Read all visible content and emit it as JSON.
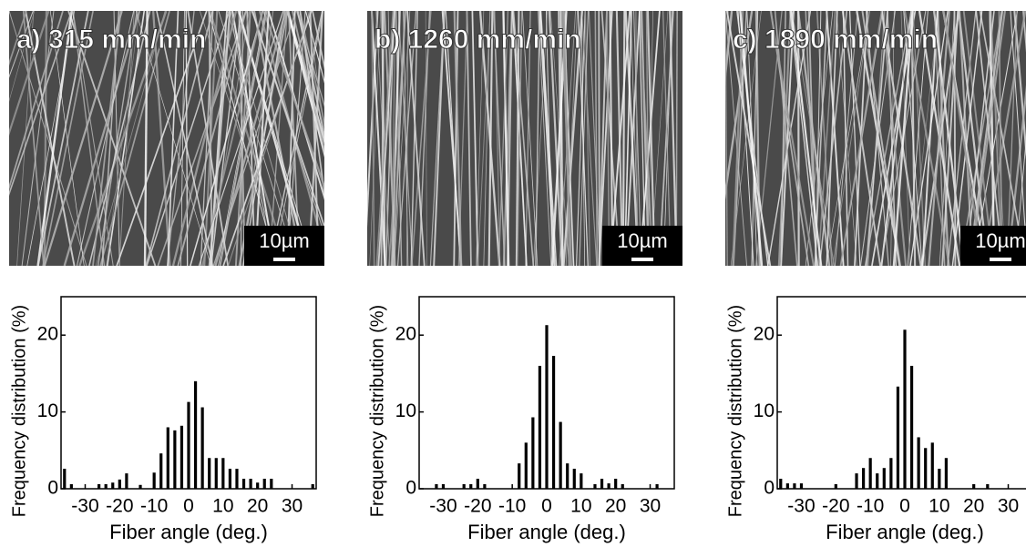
{
  "chart_data": [
    {
      "type": "bar",
      "image_label": "a) 315 mm/min",
      "scale_bar": "10µm",
      "y_label": "Frequency distribution (%)",
      "x_label": "Fiber angle (deg.)",
      "xlim": [
        -37,
        37
      ],
      "ylim": [
        0,
        25
      ],
      "xticks": [
        -30,
        -20,
        -10,
        0,
        10,
        20,
        30
      ],
      "yticks": [
        0,
        10,
        20
      ],
      "color": "#000000",
      "x": [
        -36,
        -34,
        -32,
        -30,
        -28,
        -26,
        -24,
        -22,
        -20,
        -18,
        -16,
        -14,
        -12,
        -10,
        -8,
        -6,
        -4,
        -2,
        0,
        2,
        4,
        6,
        8,
        10,
        12,
        14,
        16,
        18,
        20,
        22,
        24,
        26,
        28,
        30,
        32,
        34,
        36
      ],
      "values": [
        2.6,
        0.6,
        0,
        0,
        0,
        0.6,
        0.6,
        0.8,
        1.2,
        2.0,
        0,
        0.5,
        0,
        2.1,
        4.6,
        8.0,
        7.6,
        8.2,
        11.3,
        14.0,
        10.6,
        4.0,
        4.0,
        4.0,
        2.6,
        2.6,
        1.3,
        1.3,
        0.8,
        1.3,
        1.3,
        0,
        0,
        0,
        0,
        0,
        0.6
      ]
    },
    {
      "type": "bar",
      "image_label": "b) 1260 mm/min",
      "scale_bar": "10µm",
      "y_label": "Frequency distribution (%)",
      "x_label": "Fiber angle (deg.)",
      "xlim": [
        -37,
        37
      ],
      "ylim": [
        0,
        25
      ],
      "xticks": [
        -30,
        -20,
        -10,
        0,
        10,
        20,
        30
      ],
      "yticks": [
        0,
        10,
        20
      ],
      "color": "#000000",
      "x": [
        -36,
        -34,
        -32,
        -30,
        -28,
        -26,
        -24,
        -22,
        -20,
        -18,
        -16,
        -14,
        -12,
        -10,
        -8,
        -6,
        -4,
        -2,
        0,
        2,
        4,
        6,
        8,
        10,
        12,
        14,
        16,
        18,
        20,
        22,
        24,
        26,
        28,
        30,
        32,
        34,
        36
      ],
      "values": [
        0,
        0,
        0.6,
        0.6,
        0,
        0,
        0.6,
        0.6,
        1.3,
        0.6,
        0,
        0,
        0,
        0,
        3.3,
        6.0,
        9.3,
        16.0,
        21.3,
        17.3,
        8.7,
        3.3,
        2.6,
        2.0,
        0,
        0.6,
        1.3,
        0.7,
        1.3,
        0.6,
        0,
        0,
        0,
        0,
        0.6,
        0,
        0
      ]
    },
    {
      "type": "bar",
      "image_label": "c) 1890 mm/min",
      "scale_bar": "10µm",
      "y_label": "Frequency distribution (%)",
      "x_label": "Fiber angle (deg.)",
      "xlim": [
        -37,
        37
      ],
      "ylim": [
        0,
        25
      ],
      "xticks": [
        -30,
        -20,
        -10,
        0,
        10,
        20,
        30
      ],
      "yticks": [
        0,
        10,
        20
      ],
      "color": "#000000",
      "x": [
        -36,
        -34,
        -32,
        -30,
        -28,
        -26,
        -24,
        -22,
        -20,
        -18,
        -16,
        -14,
        -12,
        -10,
        -8,
        -6,
        -4,
        -2,
        0,
        2,
        4,
        6,
        8,
        10,
        12,
        14,
        16,
        18,
        20,
        22,
        24,
        26,
        28,
        30,
        32,
        34,
        36
      ],
      "values": [
        1.3,
        0.7,
        0.7,
        0.7,
        0,
        0,
        0,
        0,
        0.6,
        0,
        0,
        2.0,
        2.7,
        4.0,
        2.0,
        2.7,
        4.0,
        13.3,
        20.7,
        16.0,
        6.7,
        5.3,
        6.0,
        2.6,
        4.0,
        0,
        0,
        0,
        0.6,
        0,
        0.6,
        0,
        0,
        0,
        0,
        0,
        0
      ]
    }
  ]
}
